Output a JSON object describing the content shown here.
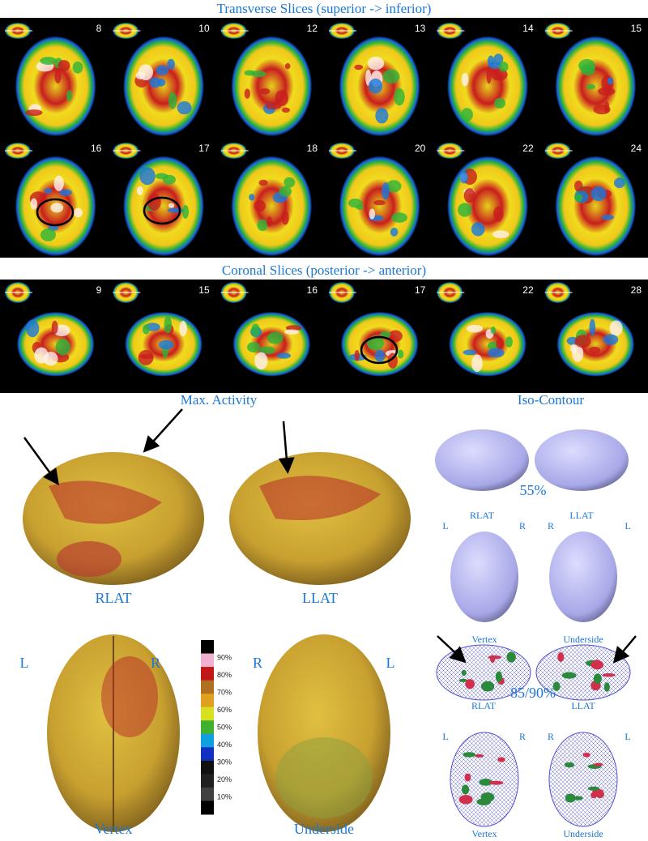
{
  "transverse": {
    "title": "Transverse Slices (superior -> inferior)",
    "slices": [
      8,
      10,
      12,
      13,
      14,
      15,
      16,
      17,
      18,
      20,
      22,
      24
    ]
  },
  "coronal": {
    "title": "Coronal Slices (posterior -> anterior)",
    "slices": [
      9,
      15,
      16,
      17,
      22,
      28
    ]
  },
  "max_activity": {
    "title": "Max. Activity",
    "lateral": [
      "RLAT",
      "LLAT"
    ],
    "orientation": [
      "L",
      "R",
      "R",
      "L"
    ],
    "views": [
      "Vertex",
      "Underside"
    ],
    "colorbar": [
      "90%",
      "80%",
      "70%",
      "60%",
      "50%",
      "40%",
      "30%",
      "20%",
      "10%"
    ]
  },
  "iso_contour": {
    "title": "Iso-Contour",
    "low": {
      "lateral": [
        "RLAT",
        "LLAT"
      ],
      "threshold": "55%",
      "orientation": [
        "L",
        "R",
        "R",
        "L"
      ],
      "views": [
        "Vertex",
        "Underside"
      ]
    },
    "high": {
      "lateral": [
        "RLAT",
        "LLAT"
      ],
      "threshold": "85/90%",
      "orientation": [
        "L",
        "R",
        "R",
        "L"
      ],
      "views": [
        "Vertex",
        "Underside"
      ]
    }
  }
}
